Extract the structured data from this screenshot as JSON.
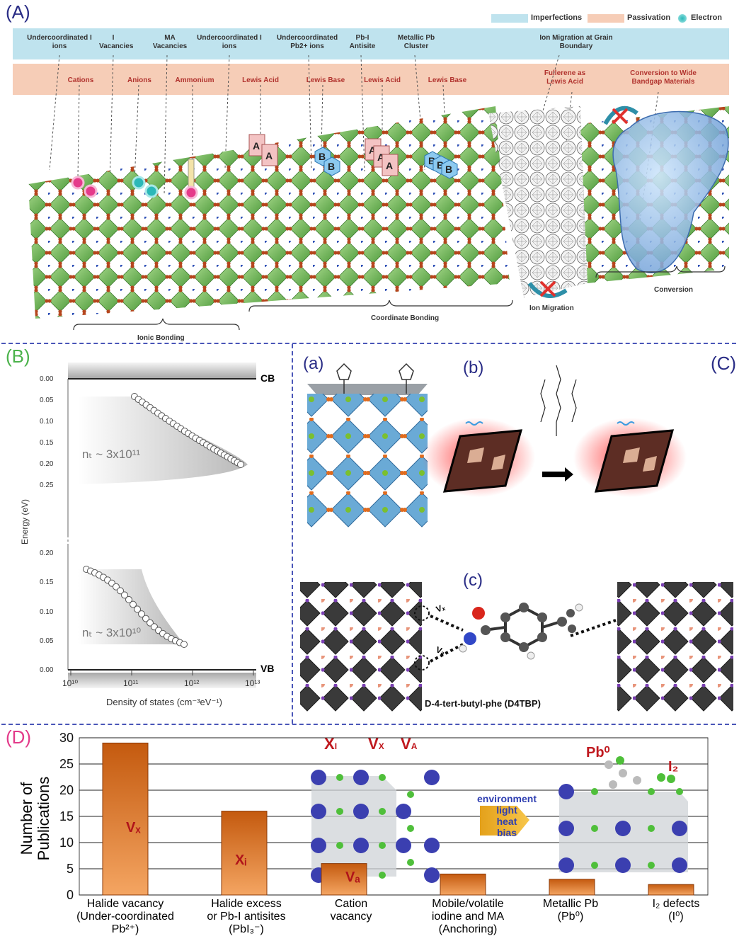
{
  "panelA": {
    "label": "(A)",
    "legend": [
      {
        "text": "Imperfections",
        "color": "#bfe3ee"
      },
      {
        "text": "Passivation",
        "color": "#f6cdb7"
      },
      {
        "text": "Electron",
        "color": "#2bb8b8"
      }
    ],
    "imperfections": [
      "Undercoordinated I ions",
      "I Vacancies",
      "MA Vacancies",
      "Undercoordinated I ions",
      "Undercoordinated Pb2+ ions",
      "Pb-I Antisite",
      "Metallic Pb Cluster",
      "Ion Migration at Grain Boundary"
    ],
    "passivation": [
      "Cations",
      "Anions",
      "Ammonium",
      "Lewis Acid",
      "Lewis Base",
      "Lewis Acid",
      "Lewis Base",
      "Fullerene as Lewis Acid",
      "Conversion to Wide Bandgap Materials"
    ],
    "bottom": [
      "Ionic Bonding",
      "Coordinate Bonding",
      "Ion Migration",
      "Conversion"
    ]
  },
  "panelB": {
    "label": "(B)",
    "cb_label": "CB",
    "vb_label": "VB",
    "ylabel": "Energy (eV)",
    "xlabel": "Density of states (cm⁻³eV⁻¹)",
    "nt_top": "nₜ ~ 3x10¹¹",
    "nt_bottom": "nₜ ~ 3x10¹⁰",
    "top_ticks": [
      "0.00",
      "0.05",
      "0.10",
      "0.15",
      "0.20",
      "0.25"
    ],
    "bottom_ticks": [
      "0.20",
      "0.15",
      "0.10",
      "0.05",
      "0.00"
    ],
    "x_ticks": [
      "10¹⁰",
      "10¹¹",
      "10¹²",
      "10¹³"
    ]
  },
  "panelC": {
    "label": "(C)",
    "sub_a": "(a)",
    "sub_b": "(b)",
    "sub_c": "(c)",
    "vx_label": "Vₓ",
    "va_label": "Vₐ",
    "molecule_caption": "D-4-tert-butyl-phe (D4TBP)"
  },
  "panelD": {
    "label": "(D)",
    "ylabel_line1": "Number of",
    "ylabel_line2": "Publications",
    "legend_labels": {
      "xi": "X",
      "vx": "V",
      "va": "V",
      "pb0": "Pb⁰",
      "i2": "I₂"
    },
    "arrow_text": [
      "environment",
      "light",
      "heat",
      "bias"
    ],
    "chart_data": {
      "type": "bar",
      "categories": [
        "Halide vacancy (Under-coordinated Pb2+)",
        "Halide excess or Pb-I antisites (PbI3-)",
        "Cation vacancy",
        "Mobile/volatile iodine and MA (Anchoring)",
        "Metallic Pb (Pb0)",
        "I2 defects (I0)"
      ],
      "values": [
        29,
        16,
        6,
        4,
        3,
        2
      ],
      "bar_labels": [
        "Vₓ",
        "Xᵢ",
        "Vₐ",
        "",
        "",
        ""
      ],
      "ylim": [
        0,
        30
      ],
      "yticks": [
        0,
        5,
        10,
        15,
        20,
        25,
        30
      ],
      "ylabel": "Number of Publications",
      "grid": true
    },
    "cat_lines": [
      [
        "Halide vacancy",
        "(Under-coordinated",
        "Pb²⁺)"
      ],
      [
        "Halide excess",
        "or Pb-I antisites",
        "(PbI₃⁻)"
      ],
      [
        "Cation",
        "vacancy"
      ],
      [
        "Mobile/volatile",
        "iodine and MA",
        "(Anchoring)"
      ],
      [
        "Metallic Pb",
        "(Pb⁰)"
      ],
      [
        "I₂ defects",
        "(I⁰)"
      ]
    ]
  }
}
